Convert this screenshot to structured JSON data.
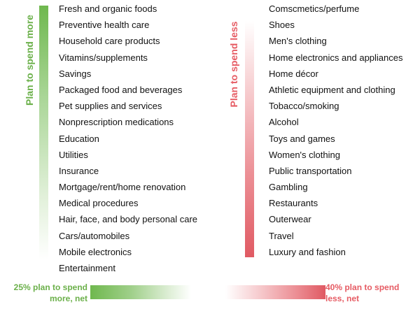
{
  "spend_more": {
    "heading": "Plan to spend more",
    "items": [
      "Fresh and organic foods",
      "Preventive health care",
      "Household care products",
      "Vitamins/supplements",
      "Savings",
      "Packaged food and beverages",
      "Pet supplies and services",
      "Nonprescription medications",
      "Education",
      "Utilities",
      "Insurance",
      "Mortgage/rent/home renovation",
      "Medical procedures",
      "Hair, face, and body personal care",
      "Cars/automobiles",
      "Mobile electronics",
      "Entertainment"
    ],
    "net_line1": "25% plan to spend",
    "net_line2": "more, net",
    "color": "#6bb04a"
  },
  "spend_less": {
    "heading": "Plan to spend less",
    "items": [
      "Comscmetics/perfume",
      "Shoes",
      "Men's clothing",
      "Home electronics and appliances",
      "Home décor",
      "Athletic equipment and clothing",
      "Tobacco/smoking",
      "Alcohol",
      "Toys and games",
      "Women's clothing",
      "Public transportation",
      "Gambling",
      "Restaurants",
      "Outerwear",
      "Travel",
      "Luxury and fashion"
    ],
    "net_line1": "40% plan to spend",
    "net_line2": "less, net",
    "color": "#e65c64"
  }
}
